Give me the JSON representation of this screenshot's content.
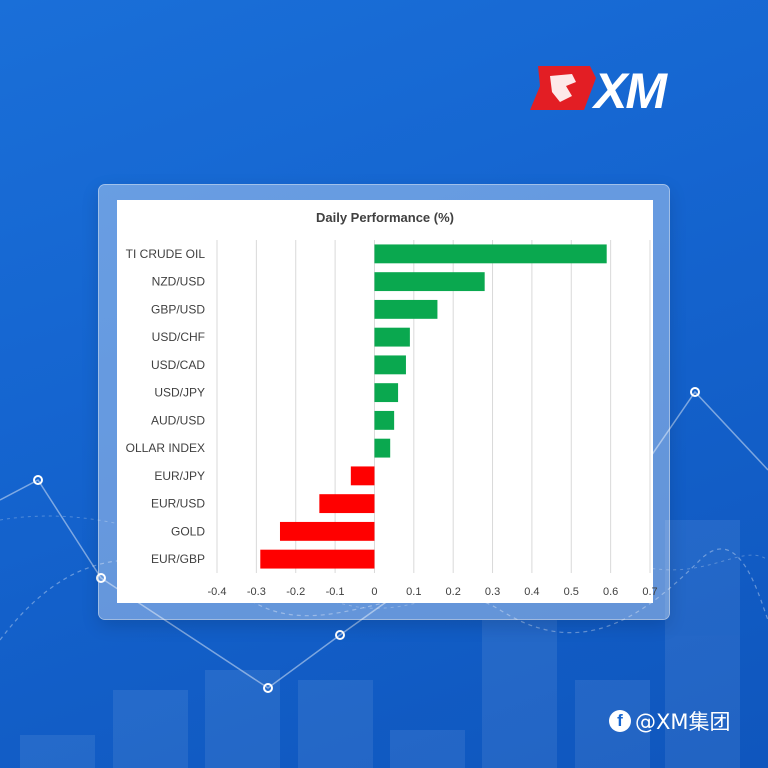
{
  "brand": {
    "logo_text": "XM",
    "watermark": "@XM集团",
    "watermark_icon": "facebook-icon"
  },
  "colors": {
    "positive": "#0aa84f",
    "negative": "#ff0000",
    "background": "#1565d0",
    "logo_red": "#e31e24"
  },
  "chart_data": {
    "type": "bar",
    "orientation": "horizontal",
    "title": "Daily Performance (%)",
    "xlabel": "",
    "ylabel": "",
    "categories": [
      "TI CRUDE OIL",
      "NZD/USD",
      "GBP/USD",
      "USD/CHF",
      "USD/CAD",
      "USD/JPY",
      "AUD/USD",
      "OLLAR INDEX",
      "EUR/JPY",
      "EUR/USD",
      "GOLD",
      "EUR/GBP"
    ],
    "values": [
      0.59,
      0.28,
      0.16,
      0.09,
      0.08,
      0.06,
      0.05,
      0.04,
      -0.06,
      -0.14,
      -0.24,
      -0.29
    ],
    "xlim": [
      -0.4,
      0.7
    ],
    "xticks": [
      "-0.4",
      "-0.3",
      "-0.2",
      "-0.1",
      "0",
      "0.1",
      "0.2",
      "0.3",
      "0.4",
      "0.5",
      "0.6",
      "0.7"
    ],
    "grid": "vertical",
    "legend": "none"
  }
}
